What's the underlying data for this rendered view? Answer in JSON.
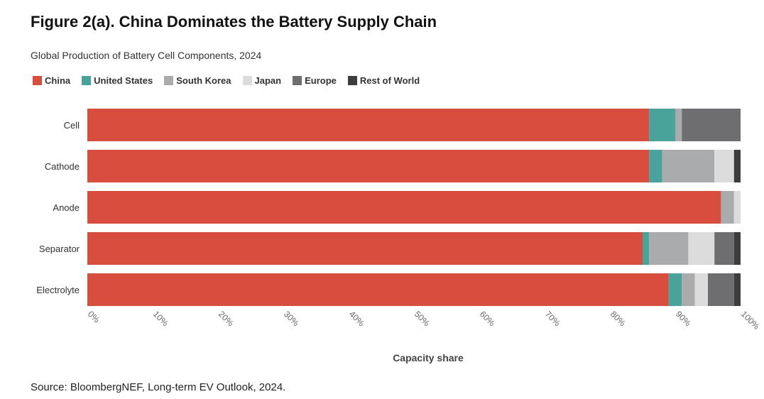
{
  "title": "Figure 2(a). China Dominates the Battery Supply Chain",
  "subtitle": "Global Production of Battery Cell Components, 2024",
  "source": "Source: BloombergNEF, Long-term EV Outlook, 2024.",
  "chart_data": {
    "type": "bar",
    "orientation": "horizontal",
    "stacked": true,
    "title": "Figure 2(a). China Dominates the Battery Supply Chain",
    "subtitle": "Global Production of Battery Cell Components, 2024",
    "xlabel": "Capacity share",
    "ylabel": "",
    "xlim": [
      0,
      100
    ],
    "x_ticks": [
      "0%",
      "10%",
      "20%",
      "30%",
      "40%",
      "50%",
      "60%",
      "70%",
      "80%",
      "90%",
      "100%"
    ],
    "categories": [
      "Cell",
      "Cathode",
      "Anode",
      "Separator",
      "Electrolyte"
    ],
    "series": [
      {
        "name": "China",
        "color": "#d94d3f",
        "values": [
          86,
          86,
          97,
          85,
          89
        ]
      },
      {
        "name": "United States",
        "color": "#4aa39b",
        "values": [
          4,
          2,
          0,
          1,
          2
        ]
      },
      {
        "name": "South Korea",
        "color": "#a9abad",
        "values": [
          1,
          8,
          2,
          6,
          2
        ]
      },
      {
        "name": "Japan",
        "color": "#dcdcdc",
        "values": [
          0,
          3,
          1,
          4,
          2
        ]
      },
      {
        "name": "Europe",
        "color": "#6e6e70",
        "values": [
          9,
          0,
          0,
          3,
          4
        ]
      },
      {
        "name": "Rest of World",
        "color": "#3d3d3f",
        "values": [
          0,
          1,
          0,
          1,
          1
        ]
      }
    ],
    "legend_position": "top-left",
    "grid": false
  }
}
